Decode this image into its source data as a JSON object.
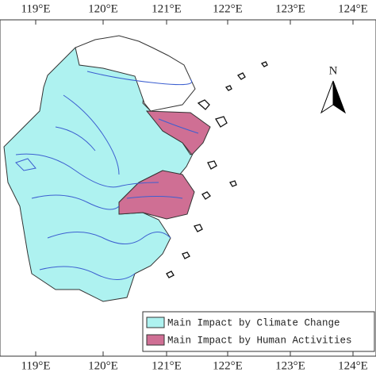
{
  "map": {
    "top_labels": [
      "119°E",
      "120°E",
      "121°E",
      "122°E",
      "123°E",
      "124°E"
    ],
    "bottom_labels": [
      "119°E",
      "120°E",
      "121°E",
      "122°E",
      "123°E",
      "124°E"
    ],
    "north": "N",
    "legend": [
      {
        "label": "Main Impact by Climate Change",
        "color": "#aef2f0"
      },
      {
        "label": "Main Impact by Human Activities",
        "color": "#cf6f94"
      }
    ]
  }
}
